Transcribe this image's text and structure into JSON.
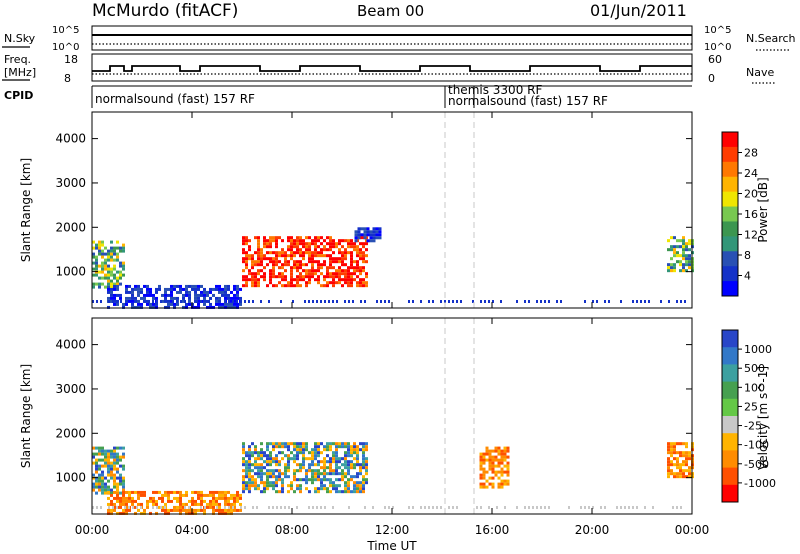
{
  "header": {
    "station": "McMurdo (fitACF)",
    "beam": "Beam 00",
    "date": "01/Jun/2011"
  },
  "top_panels": {
    "nsky_label": "N.Sky",
    "nsky_ticks": [
      "10^5",
      "10^0"
    ],
    "nsearch_label": "N.Search",
    "nsearch_ticks": [
      "10^5",
      "10^0"
    ],
    "freq_label_1": "Freq.",
    "freq_label_2": "[MHz]",
    "freq_ticks": [
      "18",
      "8"
    ],
    "nave_label": "Nave",
    "nave_ticks": [
      "60",
      "0"
    ],
    "cpid_label": "CPID",
    "cpid_segments": [
      {
        "label": "normalsound (fast) 157 RF",
        "start_hour": 0
      },
      {
        "label": "themis 3300 RF",
        "start_hour": 14.3
      },
      {
        "label": "normalsound (fast) 157 RF",
        "start_hour": 15.3
      }
    ]
  },
  "colorbars": {
    "power": {
      "label": "Power [dB]",
      "ticks": [
        "28",
        "24",
        "20",
        "16",
        "12",
        "8",
        "4"
      ],
      "colors": [
        "#ff0000",
        "#ff3c00",
        "#ff7800",
        "#ffb400",
        "#f0e600",
        "#78c850",
        "#3c9650",
        "#329678",
        "#2850b4",
        "#1432c8",
        "#0000ff"
      ]
    },
    "velocity": {
      "label": "Velocity [m s^-1]",
      "ticks": [
        "1000",
        "500",
        "100",
        "25",
        "-25",
        "-100",
        "-500",
        "-1000"
      ],
      "colors": [
        "#2846c8",
        "#3278c8",
        "#3ca0a0",
        "#46a050",
        "#64c846",
        "#c8c8c8",
        "#ffb400",
        "#ff8c00",
        "#ff5000",
        "#ff0000"
      ]
    }
  },
  "axes": {
    "ylabel": "Slant Range [km]",
    "xlabel": "Time UT",
    "y_ticks": [
      "4000",
      "3000",
      "2000",
      "1000"
    ],
    "x_ticks": [
      "00:00",
      "04:00",
      "08:00",
      "12:00",
      "16:00",
      "20:00",
      "00:00"
    ]
  },
  "chart_data": [
    {
      "type": "heatmap",
      "name": "Power",
      "x_range_hours": [
        0,
        24
      ],
      "y_range_km": [
        180,
        4600
      ],
      "colorbar_range_db": [
        0,
        32
      ],
      "regions": [
        {
          "t0": 0.0,
          "t1": 1.3,
          "r0": 650,
          "r1": 1700,
          "level": "mixed"
        },
        {
          "t0": 0.6,
          "t1": 6.0,
          "r0": 180,
          "r1": 700,
          "level": "low"
        },
        {
          "t0": 6.0,
          "t1": 11.0,
          "r0": 700,
          "r1": 1800,
          "level": "high"
        },
        {
          "t0": 10.5,
          "t1": 11.5,
          "r0": 1700,
          "r1": 2000,
          "level": "low"
        },
        {
          "t0": 23.0,
          "t1": 24.0,
          "r0": 1000,
          "r1": 1800,
          "level": "mixed"
        }
      ]
    },
    {
      "type": "heatmap",
      "name": "Velocity",
      "x_range_hours": [
        0,
        24
      ],
      "y_range_km": [
        180,
        4600
      ],
      "colorbar_range_ms": [
        -1000,
        1000
      ],
      "regions": [
        {
          "t0": 0.0,
          "t1": 1.3,
          "r0": 650,
          "r1": 1700,
          "level": "mixed"
        },
        {
          "t0": 0.6,
          "t1": 6.0,
          "r0": 180,
          "r1": 700,
          "level": "negative"
        },
        {
          "t0": 6.0,
          "t1": 11.0,
          "r0": 700,
          "r1": 1800,
          "level": "mixed"
        },
        {
          "t0": 15.5,
          "t1": 16.7,
          "r0": 800,
          "r1": 1700,
          "level": "negative"
        },
        {
          "t0": 23.0,
          "t1": 24.0,
          "r0": 1000,
          "r1": 1800,
          "level": "negative"
        }
      ]
    }
  ]
}
